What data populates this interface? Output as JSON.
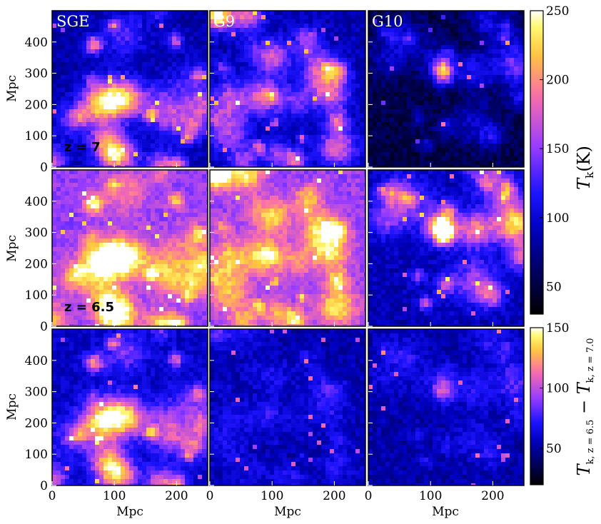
{
  "chart_data": {
    "type": "heatmap",
    "columns": [
      "SGE",
      "G9",
      "G10"
    ],
    "row_annotations": [
      "z = 7",
      "z = 6.5",
      ""
    ],
    "xlabel": "Mpc",
    "ylabel": "Mpc",
    "xlim": [
      0,
      250
    ],
    "ylim": [
      0,
      500
    ],
    "x_ticks": [
      "0",
      "100",
      "200"
    ],
    "y_ticks": [
      "0",
      "100",
      "200",
      "300",
      "400"
    ],
    "x_tick_values": [
      0,
      100,
      200
    ],
    "y_tick_values": [
      0,
      100,
      200,
      300,
      400
    ],
    "colorbars": [
      {
        "label": "T_k(K)",
        "label_main": "T",
        "label_sub": "k",
        "label_rest": "(K)",
        "range": [
          30,
          250
        ],
        "ticks": [
          "50",
          "100",
          "150",
          "200",
          "250"
        ],
        "tick_values": [
          50,
          100,
          150,
          200,
          250
        ],
        "colormap": "gnuplot2"
      },
      {
        "label": "T_{k,z=6.5} − T_{k,z=7.0}",
        "label_parts": [
          "T",
          "k, z = 6.5",
          " − T",
          "k, z = 7.0"
        ],
        "range": [
          20,
          150
        ],
        "ticks": [
          "50",
          "100",
          "150"
        ],
        "tick_values": [
          50,
          100,
          150
        ],
        "colormap": "gnuplot2"
      }
    ],
    "panels": [
      {
        "row": 0,
        "col": 0,
        "name": "SGE",
        "z": 7,
        "base_level": 0.42,
        "contrast": 0.34
      },
      {
        "row": 0,
        "col": 1,
        "name": "G9",
        "z": 7,
        "base_level": 0.42,
        "contrast": 0.32
      },
      {
        "row": 0,
        "col": 2,
        "name": "G10",
        "z": 7,
        "base_level": 0.2,
        "contrast": 0.18
      },
      {
        "row": 1,
        "col": 0,
        "name": "SGE",
        "z": 6.5,
        "base_level": 0.7,
        "contrast": 0.3
      },
      {
        "row": 1,
        "col": 1,
        "name": "G9",
        "z": 6.5,
        "base_level": 0.7,
        "contrast": 0.28
      },
      {
        "row": 1,
        "col": 2,
        "name": "G10",
        "z": 6.5,
        "base_level": 0.42,
        "contrast": 0.3
      },
      {
        "row": 2,
        "col": 0,
        "name": "SGE",
        "base_level": 0.46,
        "contrast": 0.34
      },
      {
        "row": 2,
        "col": 1,
        "name": "G9",
        "base_level": 0.3,
        "contrast": 0.1
      },
      {
        "row": 2,
        "col": 2,
        "name": "G10",
        "base_level": 0.3,
        "contrast": 0.1
      }
    ]
  }
}
